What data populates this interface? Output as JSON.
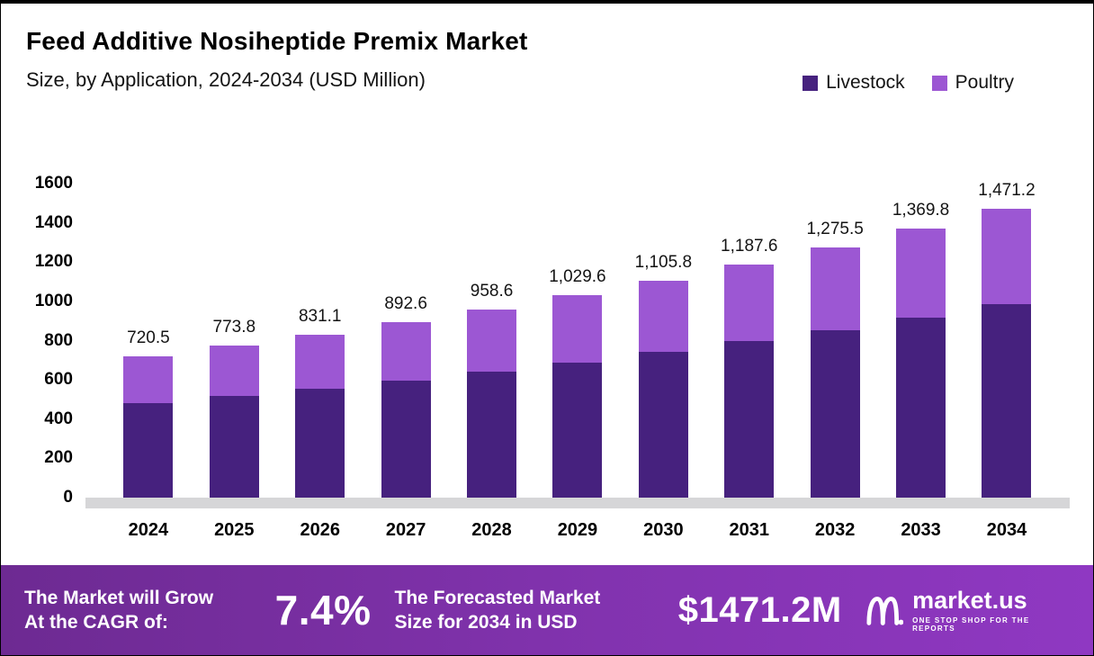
{
  "header": {
    "title": "Feed Additive Nosiheptide Premix Market",
    "subtitle": "Size, by Application, 2024-2034 (USD Million)"
  },
  "legend": [
    {
      "label": "Livestock",
      "color": "#46217e"
    },
    {
      "label": "Poultry",
      "color": "#9c57d3"
    }
  ],
  "chart_data": {
    "type": "bar",
    "stacked": true,
    "title": "Feed Additive Nosiheptide Premix Market Size, by Application, 2024-2034 (USD Million)",
    "categories": [
      "2024",
      "2025",
      "2026",
      "2027",
      "2028",
      "2029",
      "2030",
      "2031",
      "2032",
      "2033",
      "2034"
    ],
    "series": [
      {
        "name": "Livestock",
        "color": "#46217e",
        "values": [
          483,
          518,
          557,
          598,
          642,
          690,
          741,
          796,
          855,
          918,
          986
        ]
      },
      {
        "name": "Poultry",
        "color": "#9c57d3",
        "values": [
          237.5,
          255.8,
          274.1,
          294.6,
          316.6,
          339.6,
          364.8,
          391.6,
          420.5,
          451.8,
          485.2
        ]
      }
    ],
    "totals": [
      "720.5",
      "773.8",
      "831.1",
      "892.6",
      "958.6",
      "1,029.6",
      "1,105.8",
      "1,187.6",
      "1,275.5",
      "1,369.8",
      "1,471.2"
    ],
    "xlabel": "",
    "ylabel": "",
    "ylim": [
      0,
      1600
    ],
    "yticks": [
      0,
      200,
      400,
      600,
      800,
      1000,
      1200,
      1400,
      1600
    ],
    "grid": false,
    "legend_position": "top-right"
  },
  "footer": {
    "left_line1": "The Market will Grow",
    "left_line2": "At the CAGR of:",
    "cagr": "7.4%",
    "mid_line1": "The Forecasted Market",
    "mid_line2": "Size for 2034 in USD",
    "value": "$1471.2M",
    "brand": "market.us",
    "tagline": "ONE STOP SHOP FOR THE REPORTS"
  },
  "colors": {
    "livestock": "#46217e",
    "poultry": "#9c57d3",
    "banner_gradient_start": "#6d2a92",
    "banner_gradient_end": "#8f38c2",
    "floor_shadow": "#d6d6d8"
  }
}
